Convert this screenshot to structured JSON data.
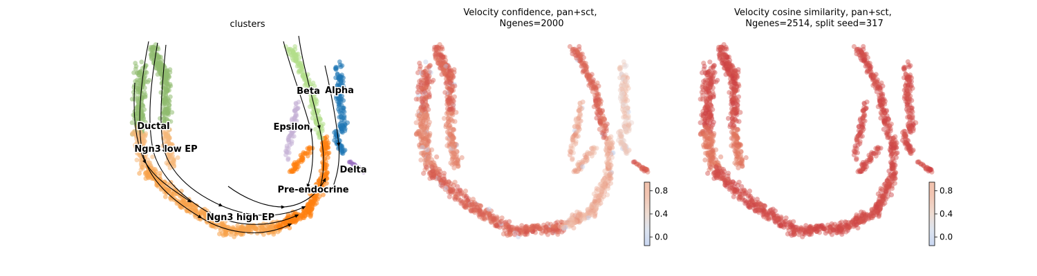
{
  "chart_data": [
    {
      "type": "scatter",
      "title": "clusters",
      "categories": [
        "Ductal",
        "Ngn3 low EP",
        "Ngn3 high EP",
        "Pre-endocrine",
        "Beta",
        "Alpha",
        "Epsilon",
        "Delta"
      ],
      "colors": {
        "Ductal": "#8fbc6f",
        "Ngn3 low EP": "#f6b87a",
        "Ngn3 high EP": "#f7a24a",
        "Pre-endocrine": "#ff7f0e",
        "Beta": "#b3de8a",
        "Alpha": "#1f77b4",
        "Epsilon": "#c5b0d5",
        "Delta": "#9467bd"
      },
      "overlay": "velocity streamlines",
      "legend": "on data"
    },
    {
      "type": "scatter",
      "title": "Velocity confidence, pan+sct,\nNgenes=2000",
      "colorbar": {
        "ticks": [
          "0.0",
          "0.4",
          "0.8"
        ],
        "range": [
          -0.15,
          0.95
        ],
        "cmap": "coolwarm"
      }
    },
    {
      "type": "scatter",
      "title": "Velocity cosine similarity, pan+sct,\nNgenes=2514, split seed=317",
      "colorbar": {
        "ticks": [
          "0.0",
          "0.4",
          "0.8"
        ],
        "range": [
          -0.15,
          0.95
        ],
        "cmap": "coolwarm"
      }
    }
  ]
}
